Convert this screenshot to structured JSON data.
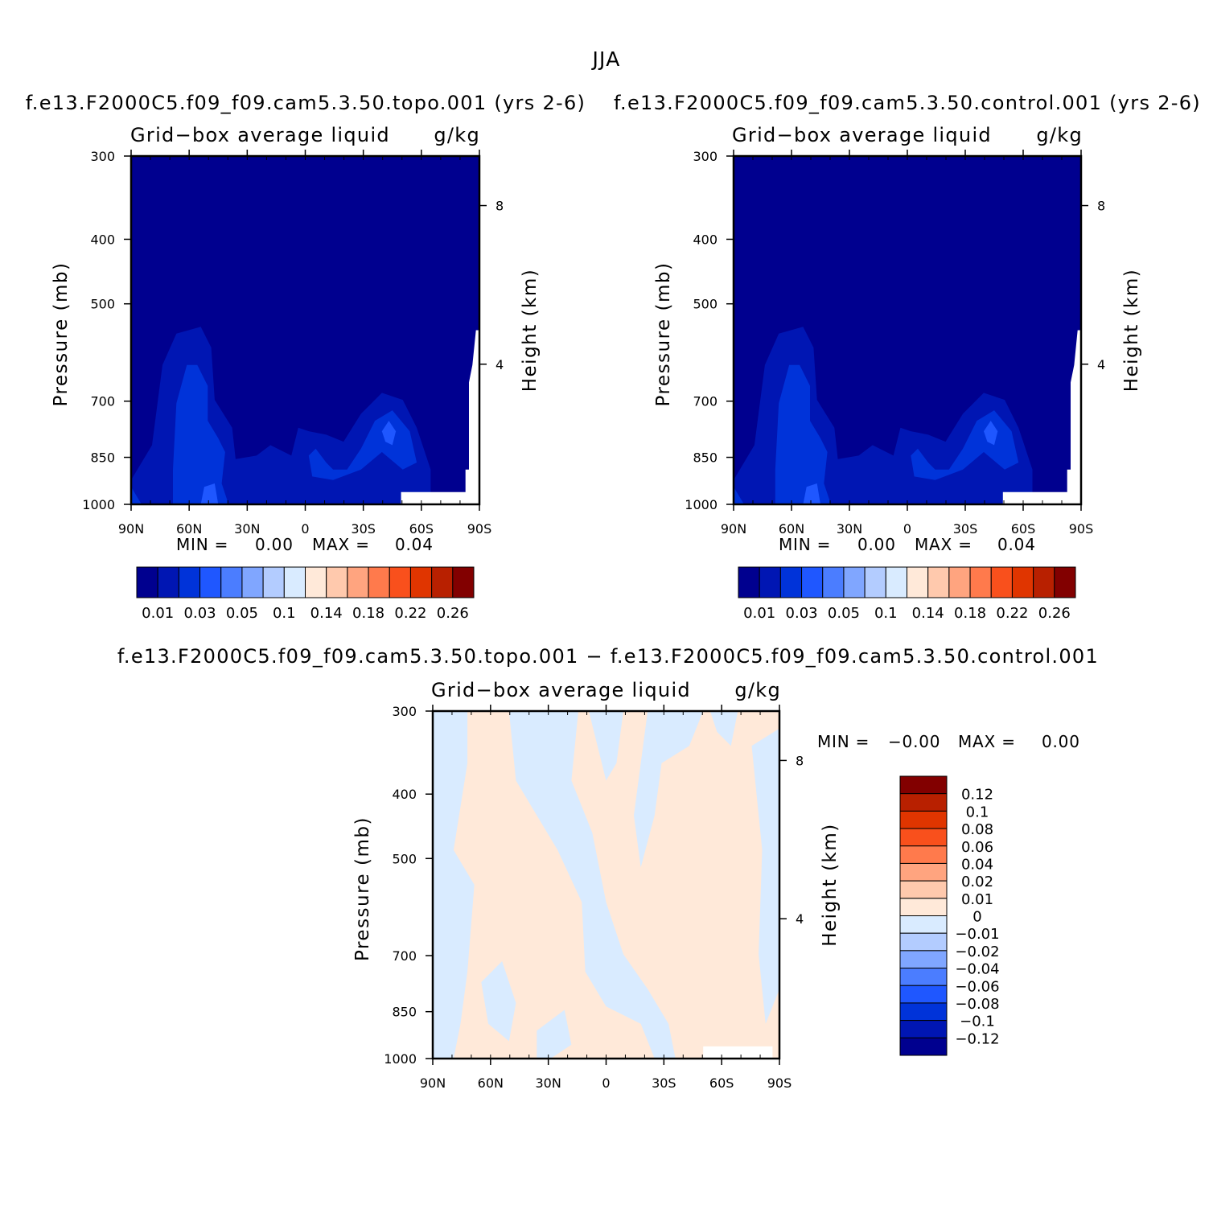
{
  "figure": {
    "title": "JJA"
  },
  "chart_data": [
    {
      "type": "heatmap",
      "title": "f.e13.F2000C5.f09_f09.cam5.3.50.topo.001 (yrs 2-6)",
      "subtitle_left": "Grid−box average liquid",
      "subtitle_right": "g/kg",
      "ylabel": "Pressure (mb)",
      "ylabel_right": "Height (km)",
      "x_ticks": [
        "90N",
        "60N",
        "30N",
        "0",
        "30S",
        "60S",
        "90S"
      ],
      "x_values": [
        90,
        60,
        30,
        0,
        -30,
        -60,
        -90
      ],
      "y_ticks": [
        "300",
        "400",
        "500",
        "700",
        "850",
        "1000"
      ],
      "y_values": [
        300,
        400,
        500,
        700,
        850,
        1000
      ],
      "y_right_ticks": [
        "8",
        "4"
      ],
      "ylim": [
        1000,
        300
      ],
      "xlim": [
        90,
        -90
      ],
      "min_label": "MIN =",
      "min_value": "0.00",
      "max_label": "MAX =",
      "max_value": "0.04",
      "levels": [
        "0.01",
        "0.03",
        "0.05",
        "0.1",
        "0.14",
        "0.18",
        "0.22",
        "0.26"
      ],
      "legend": "bottom"
    },
    {
      "type": "heatmap",
      "title": "f.e13.F2000C5.f09_f09.cam5.3.50.control.001 (yrs 2-6)",
      "subtitle_left": "Grid−box average liquid",
      "subtitle_right": "g/kg",
      "ylabel": "Pressure (mb)",
      "ylabel_right": "Height (km)",
      "x_ticks": [
        "90N",
        "60N",
        "30N",
        "0",
        "30S",
        "60S",
        "90S"
      ],
      "x_values": [
        90,
        60,
        30,
        0,
        -30,
        -60,
        -90
      ],
      "y_ticks": [
        "300",
        "400",
        "500",
        "700",
        "850",
        "1000"
      ],
      "y_values": [
        300,
        400,
        500,
        700,
        850,
        1000
      ],
      "y_right_ticks": [
        "8",
        "4"
      ],
      "ylim": [
        1000,
        300
      ],
      "xlim": [
        90,
        -90
      ],
      "min_label": "MIN =",
      "min_value": "0.00",
      "max_label": "MAX =",
      "max_value": "0.04",
      "levels": [
        "0.01",
        "0.03",
        "0.05",
        "0.1",
        "0.14",
        "0.18",
        "0.22",
        "0.26"
      ],
      "legend": "bottom"
    },
    {
      "type": "heatmap",
      "title": "f.e13.F2000C5.f09_f09.cam5.3.50.topo.001 − f.e13.F2000C5.f09_f09.cam5.3.50.control.001",
      "subtitle_left": "Grid−box average liquid",
      "subtitle_right": "g/kg",
      "ylabel": "Pressure (mb)",
      "ylabel_right": "Height (km)",
      "x_ticks": [
        "90N",
        "60N",
        "30N",
        "0",
        "30S",
        "60S",
        "90S"
      ],
      "x_values": [
        90,
        60,
        30,
        0,
        -30,
        -60,
        -90
      ],
      "y_ticks": [
        "300",
        "400",
        "500",
        "700",
        "850",
        "1000"
      ],
      "y_values": [
        300,
        400,
        500,
        700,
        850,
        1000
      ],
      "y_right_ticks": [
        "8",
        "4"
      ],
      "ylim": [
        1000,
        300
      ],
      "xlim": [
        90,
        -90
      ],
      "min_label": "MIN =",
      "min_value": "−0.00",
      "max_label": "MAX =",
      "max_value": "0.00",
      "levels": [
        "0.12",
        "0.1",
        "0.08",
        "0.06",
        "0.04",
        "0.02",
        "0.01",
        "0",
        "−0.01",
        "−0.02",
        "−0.04",
        "−0.06",
        "−0.08",
        "−0.1",
        "−0.12"
      ],
      "legend": "right"
    }
  ],
  "colors": {
    "levels_main": [
      "#00008f",
      "#0016b3",
      "#0033d9",
      "#1f57ff",
      "#4b7dff",
      "#80a6ff",
      "#b3ccff",
      "#d9ebff",
      "#ffe9d9",
      "#ffc9ad",
      "#ffa47f",
      "#ff7a4c",
      "#f9501c",
      "#e03500",
      "#b82000",
      "#820000"
    ],
    "levels_diff": [
      "#00008f",
      "#0016b3",
      "#0033d9",
      "#1f57ff",
      "#4b7dff",
      "#80a6ff",
      "#b3ccff",
      "#d9ebff",
      "#ffe9d9",
      "#ffc9ad",
      "#ffa47f",
      "#ff7a4c",
      "#f9501c",
      "#e03500",
      "#b82000",
      "#820000"
    ]
  }
}
